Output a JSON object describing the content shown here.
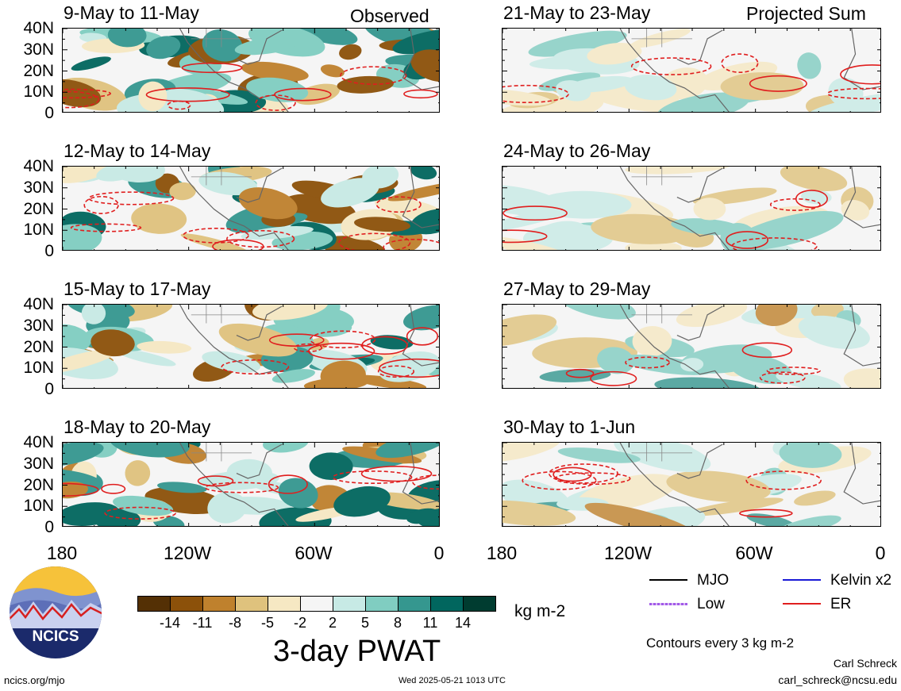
{
  "header": {
    "observed_label": "Observed",
    "projected_label": "Projected Sum"
  },
  "panels": [
    {
      "title": "9-May to 11-May",
      "group": "observed"
    },
    {
      "title": "12-May to 14-May",
      "group": "observed"
    },
    {
      "title": "15-May to 17-May",
      "group": "observed"
    },
    {
      "title": "18-May to 20-May",
      "group": "observed"
    },
    {
      "title": "21-May to 23-May",
      "group": "projected"
    },
    {
      "title": "24-May to 26-May",
      "group": "projected"
    },
    {
      "title": "27-May to 29-May",
      "group": "projected"
    },
    {
      "title": "30-May to 1-Jun",
      "group": "projected"
    }
  ],
  "axes": {
    "lat_ticks": [
      "40N",
      "30N",
      "20N",
      "10N",
      "0"
    ],
    "lon_ticks": [
      "180",
      "120W",
      "60W",
      "0"
    ]
  },
  "colorbar": {
    "labels": [
      "-14",
      "-11",
      "-8",
      "-5",
      "-2",
      "2",
      "5",
      "8",
      "11",
      "14"
    ],
    "colors": [
      "#543005",
      "#8c510a",
      "#bf812d",
      "#dfc27d",
      "#f6e8c3",
      "#f5f5f5",
      "#c7eae5",
      "#80cdc1",
      "#35978f",
      "#01665e",
      "#003c30"
    ],
    "units": "kg m-2",
    "title": "3-day PWAT"
  },
  "legend": {
    "items": [
      {
        "label": "MJO",
        "color": "#000000"
      },
      {
        "label": "Kelvin x2",
        "color": "#1a1ad6"
      },
      {
        "label": "Low",
        "color": "#a25be8"
      },
      {
        "label": "ER",
        "color": "#e01e1e"
      }
    ],
    "contour_note": "Contours every 3 kg m-2"
  },
  "footer": {
    "logo_text": "NCICS",
    "url": "ncics.org/mjo",
    "timestamp": "Wed 2025-05-21 1013 UTC",
    "author": "Carl Schreck",
    "email": "carl_schreck@ncsu.edu"
  },
  "chart_data": {
    "type": "heatmap",
    "variable": "3-day PWAT",
    "units": "kg m-2",
    "panels": [
      "9-May to 11-May",
      "12-May to 14-May",
      "15-May to 17-May",
      "18-May to 20-May",
      "21-May to 23-May",
      "24-May to 26-May",
      "27-May to 29-May",
      "30-May to 1-Jun"
    ],
    "xlim": [
      -180,
      0
    ],
    "ylim": [
      0,
      40
    ],
    "x_ticks": [
      "180",
      "120W",
      "60W",
      "0"
    ],
    "y_ticks": [
      "40N",
      "30N",
      "20N",
      "10N",
      "0"
    ],
    "color_levels": [
      -14,
      -11,
      -8,
      -5,
      -2,
      2,
      5,
      8,
      11,
      14
    ],
    "contour_interval": 3,
    "contour_series": [
      "MJO",
      "Kelvin x2",
      "Low",
      "ER"
    ]
  }
}
